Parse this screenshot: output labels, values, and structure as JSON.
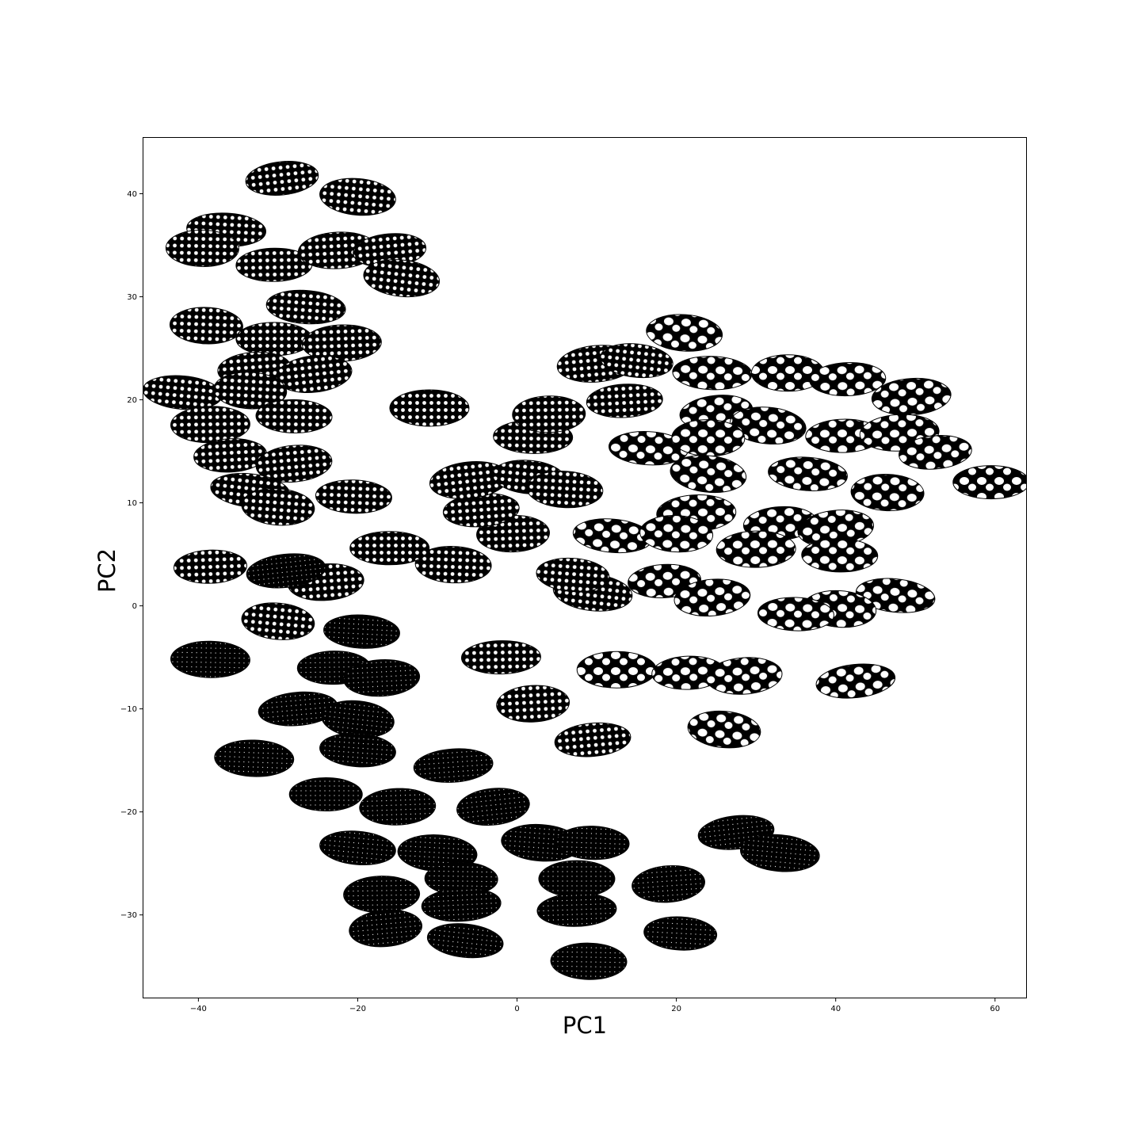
{
  "chart_data": {
    "type": "scatter",
    "title": "",
    "xlabel": "PC1",
    "ylabel": "PC2",
    "xlim": [
      -47,
      64
    ],
    "ylim": [
      -38.1,
      45.5
    ],
    "xticks": [
      -40,
      -20,
      0,
      20,
      40,
      60
    ],
    "yticks": [
      -30,
      -20,
      -10,
      0,
      10,
      20,
      30,
      40
    ],
    "xtick_labels": [
      "−40",
      "−20",
      "0",
      "20",
      "40",
      "60"
    ],
    "ytick_labels": [
      "−30",
      "−20",
      "−10",
      "0",
      "10",
      "20",
      "30",
      "40"
    ],
    "grid": false,
    "marker": "thumbnail-image",
    "series": [
      {
        "values": [
          {
            "x": -29.5,
            "y": 41.5,
            "style": "dots"
          },
          {
            "x": -20.0,
            "y": 39.7,
            "style": "dots"
          },
          {
            "x": -36.5,
            "y": 36.5,
            "style": "dots"
          },
          {
            "x": -39.5,
            "y": 34.7,
            "style": "dots"
          },
          {
            "x": -30.5,
            "y": 33.1,
            "style": "dots"
          },
          {
            "x": -22.5,
            "y": 34.5,
            "style": "dots"
          },
          {
            "x": -16.0,
            "y": 34.5,
            "style": "dots"
          },
          {
            "x": -14.5,
            "y": 31.8,
            "style": "dots"
          },
          {
            "x": -26.5,
            "y": 29.0,
            "style": "dots"
          },
          {
            "x": -39.0,
            "y": 27.2,
            "style": "dots"
          },
          {
            "x": -30.5,
            "y": 25.9,
            "style": "dots"
          },
          {
            "x": -22.0,
            "y": 25.5,
            "style": "dots"
          },
          {
            "x": -33.0,
            "y": 23.0,
            "style": "dots"
          },
          {
            "x": -25.5,
            "y": 22.5,
            "style": "dots"
          },
          {
            "x": -42.0,
            "y": 20.7,
            "style": "dots"
          },
          {
            "x": -33.5,
            "y": 20.9,
            "style": "dots"
          },
          {
            "x": -28.0,
            "y": 18.4,
            "style": "dots"
          },
          {
            "x": -38.5,
            "y": 17.6,
            "style": "dots"
          },
          {
            "x": -36.0,
            "y": 14.6,
            "style": "dots"
          },
          {
            "x": -28.0,
            "y": 13.8,
            "style": "dots"
          },
          {
            "x": -33.5,
            "y": 11.2,
            "style": "dots"
          },
          {
            "x": -30.0,
            "y": 9.6,
            "style": "dots"
          },
          {
            "x": -20.5,
            "y": 10.6,
            "style": "dots"
          },
          {
            "x": -11.0,
            "y": 19.2,
            "style": "dots"
          },
          {
            "x": -38.5,
            "y": 3.8,
            "style": "dots"
          },
          {
            "x": -24.0,
            "y": 2.3,
            "style": "dots"
          },
          {
            "x": -29.0,
            "y": 3.4,
            "style": "dark"
          },
          {
            "x": -30.0,
            "y": -1.5,
            "style": "dots"
          },
          {
            "x": -19.5,
            "y": -2.5,
            "style": "dark"
          },
          {
            "x": -38.5,
            "y": -5.2,
            "style": "dark"
          },
          {
            "x": -23.0,
            "y": -6.0,
            "style": "dark"
          },
          {
            "x": -17.0,
            "y": -7.0,
            "style": "dark"
          },
          {
            "x": -27.5,
            "y": -10.0,
            "style": "dark"
          },
          {
            "x": -20.0,
            "y": -11.0,
            "style": "dark"
          },
          {
            "x": -20.0,
            "y": -14.0,
            "style": "dark"
          },
          {
            "x": -33.0,
            "y": -14.8,
            "style": "dark"
          },
          {
            "x": -24.0,
            "y": -18.3,
            "style": "dark"
          },
          {
            "x": -15.0,
            "y": -19.5,
            "style": "dark"
          },
          {
            "x": -8.0,
            "y": -15.5,
            "style": "dark"
          },
          {
            "x": -3.0,
            "y": -19.5,
            "style": "dark"
          },
          {
            "x": -20.0,
            "y": -23.5,
            "style": "dark"
          },
          {
            "x": -10.0,
            "y": -24.0,
            "style": "dark"
          },
          {
            "x": -7.0,
            "y": -26.5,
            "style": "dark"
          },
          {
            "x": -17.0,
            "y": -28.0,
            "style": "dark"
          },
          {
            "x": -7.0,
            "y": -29.0,
            "style": "dark"
          },
          {
            "x": -16.5,
            "y": -31.3,
            "style": "dark"
          },
          {
            "x": -6.5,
            "y": -32.5,
            "style": "dark"
          },
          {
            "x": 3.0,
            "y": -23.0,
            "style": "dark"
          },
          {
            "x": 9.5,
            "y": -23.0,
            "style": "dark"
          },
          {
            "x": 7.5,
            "y": -26.5,
            "style": "dark"
          },
          {
            "x": 7.5,
            "y": -29.5,
            "style": "dark"
          },
          {
            "x": 19.0,
            "y": -27.0,
            "style": "dark"
          },
          {
            "x": 27.5,
            "y": -22.0,
            "style": "dark"
          },
          {
            "x": 33.0,
            "y": -24.0,
            "style": "dark"
          },
          {
            "x": 20.5,
            "y": -31.8,
            "style": "dark"
          },
          {
            "x": 9.0,
            "y": -34.5,
            "style": "dark"
          },
          {
            "x": -2.0,
            "y": -5.0,
            "style": "dots"
          },
          {
            "x": 2.0,
            "y": -9.5,
            "style": "dots"
          },
          {
            "x": 9.5,
            "y": -13.0,
            "style": "dots"
          },
          {
            "x": 9.5,
            "y": 1.3,
            "style": "dots"
          },
          {
            "x": 7.0,
            "y": 3.0,
            "style": "dots"
          },
          {
            "x": -8.0,
            "y": 4.0,
            "style": "dots"
          },
          {
            "x": -16.0,
            "y": 5.6,
            "style": "dots"
          },
          {
            "x": -0.5,
            "y": 7.0,
            "style": "dots"
          },
          {
            "x": -4.5,
            "y": 9.3,
            "style": "dots"
          },
          {
            "x": -6.0,
            "y": 12.2,
            "style": "dots"
          },
          {
            "x": 1.5,
            "y": 12.5,
            "style": "dots"
          },
          {
            "x": 6.0,
            "y": 11.3,
            "style": "dots"
          },
          {
            "x": 2.0,
            "y": 16.4,
            "style": "dots"
          },
          {
            "x": 4.0,
            "y": 18.6,
            "style": "dots"
          },
          {
            "x": 13.5,
            "y": 19.9,
            "style": "dots"
          },
          {
            "x": 10.0,
            "y": 23.5,
            "style": "dots"
          },
          {
            "x": 15.0,
            "y": 23.8,
            "style": "dots"
          },
          {
            "x": 21.0,
            "y": 26.5,
            "style": "spots"
          },
          {
            "x": 24.5,
            "y": 22.6,
            "style": "spots"
          },
          {
            "x": 34.0,
            "y": 22.6,
            "style": "spots"
          },
          {
            "x": 41.5,
            "y": 22.0,
            "style": "spots"
          },
          {
            "x": 49.5,
            "y": 20.3,
            "style": "spots"
          },
          {
            "x": 25.0,
            "y": 18.8,
            "style": "spots"
          },
          {
            "x": 31.5,
            "y": 17.5,
            "style": "spots"
          },
          {
            "x": 16.5,
            "y": 15.3,
            "style": "spots"
          },
          {
            "x": 24.0,
            "y": 16.3,
            "style": "spots"
          },
          {
            "x": 41.0,
            "y": 16.5,
            "style": "spots"
          },
          {
            "x": 48.0,
            "y": 16.8,
            "style": "spots"
          },
          {
            "x": 52.5,
            "y": 14.9,
            "style": "spots"
          },
          {
            "x": 24.0,
            "y": 12.8,
            "style": "spots"
          },
          {
            "x": 36.5,
            "y": 12.8,
            "style": "spots"
          },
          {
            "x": 46.5,
            "y": 11.0,
            "style": "spots"
          },
          {
            "x": 59.5,
            "y": 12.0,
            "style": "spots"
          },
          {
            "x": 22.5,
            "y": 9.0,
            "style": "spots"
          },
          {
            "x": 33.0,
            "y": 8.0,
            "style": "spots"
          },
          {
            "x": 40.0,
            "y": 7.5,
            "style": "spots"
          },
          {
            "x": 12.0,
            "y": 6.8,
            "style": "spots"
          },
          {
            "x": 20.0,
            "y": 7.0,
            "style": "spots"
          },
          {
            "x": 40.5,
            "y": 4.9,
            "style": "spots"
          },
          {
            "x": 30.0,
            "y": 5.5,
            "style": "spots"
          },
          {
            "x": 18.5,
            "y": 2.4,
            "style": "spots"
          },
          {
            "x": 24.5,
            "y": 0.8,
            "style": "spots"
          },
          {
            "x": 47.5,
            "y": 1.0,
            "style": "spots"
          },
          {
            "x": 40.5,
            "y": -0.3,
            "style": "spots"
          },
          {
            "x": 35.0,
            "y": -0.8,
            "style": "spots"
          },
          {
            "x": 12.5,
            "y": -6.2,
            "style": "spots"
          },
          {
            "x": 21.5,
            "y": -6.5,
            "style": "spots"
          },
          {
            "x": 28.5,
            "y": -6.8,
            "style": "spots"
          },
          {
            "x": 42.5,
            "y": -7.3,
            "style": "spots"
          },
          {
            "x": 26.0,
            "y": -12.0,
            "style": "spots"
          }
        ]
      }
    ]
  }
}
